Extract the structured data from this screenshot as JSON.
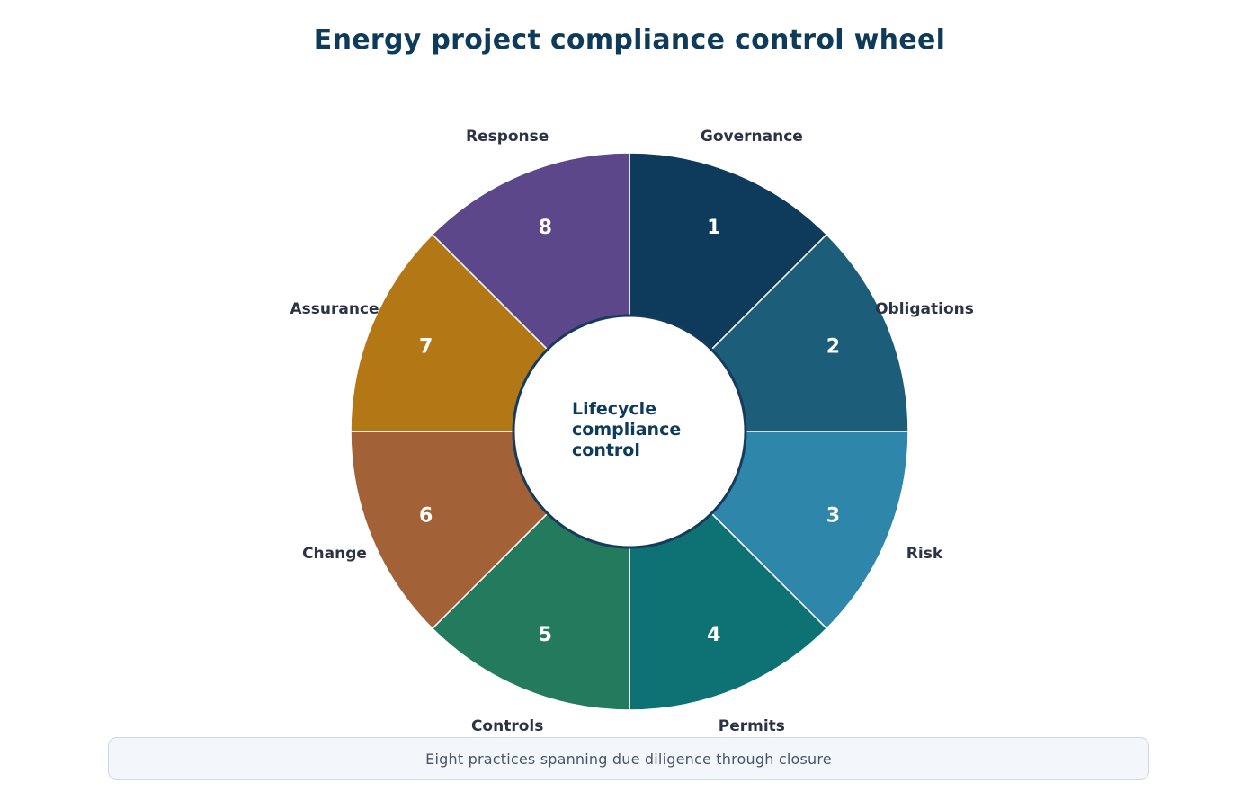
{
  "title": "Energy project compliance control wheel",
  "center": {
    "lines": [
      "Lifecycle",
      "compliance",
      "control"
    ],
    "border_color": "#163b5c"
  },
  "segments": [
    {
      "number": "1",
      "label": "Governance",
      "color": "#0e3b5c"
    },
    {
      "number": "2",
      "label": "Obligations",
      "color": "#1c5e79"
    },
    {
      "number": "3",
      "label": "Risk",
      "color": "#2e86aa"
    },
    {
      "number": "4",
      "label": "Permits",
      "color": "#0e7274"
    },
    {
      "number": "5",
      "label": "Controls",
      "color": "#237a5c"
    },
    {
      "number": "6",
      "label": "Change",
      "color": "#a36137"
    },
    {
      "number": "7",
      "label": "Assurance",
      "color": "#b37715"
    },
    {
      "number": "8",
      "label": "Response",
      "color": "#5c478b"
    }
  ],
  "footer": "Eight practices spanning due diligence through closure"
}
